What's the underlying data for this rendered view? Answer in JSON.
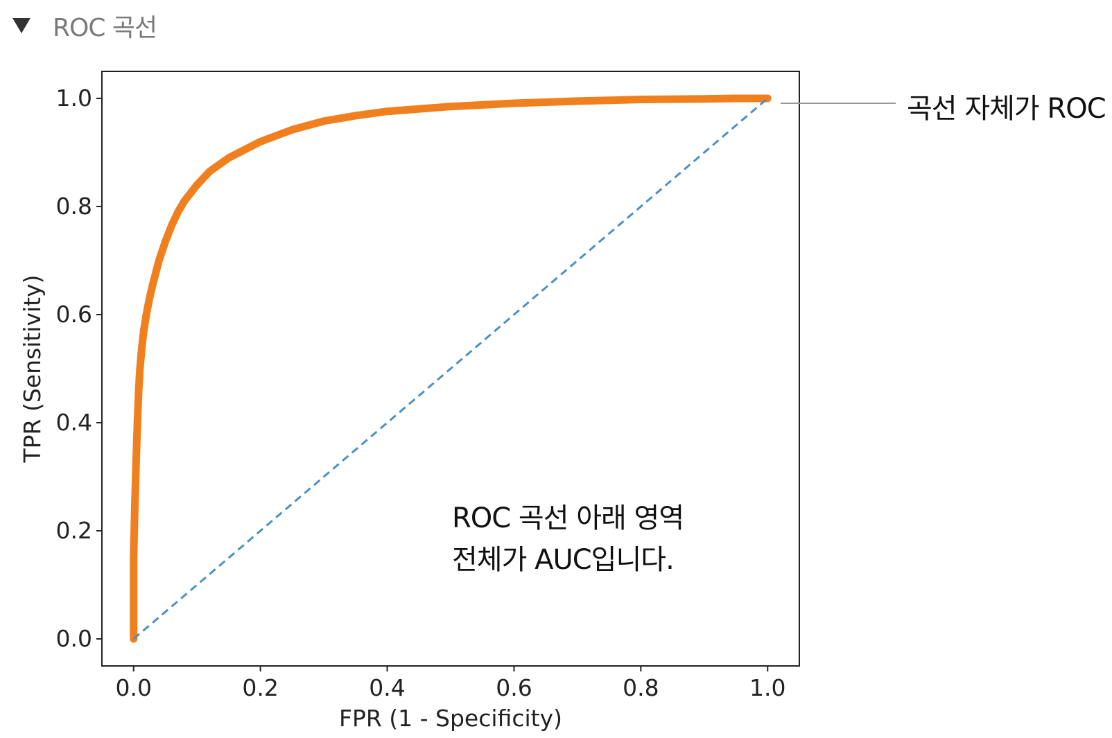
{
  "header": {
    "title": "ROC 곡선",
    "icon": "triangle-down-icon"
  },
  "chart_data": {
    "type": "scatter",
    "xlabel": "FPR (1 - Specificity)",
    "ylabel": "TPR (Sensitivity)",
    "xlim": [
      -0.05,
      1.05
    ],
    "ylim": [
      -0.05,
      1.05
    ],
    "xticks": [
      "0.0",
      "0.2",
      "0.4",
      "0.6",
      "0.8",
      "1.0"
    ],
    "yticks": [
      "0.0",
      "0.2",
      "0.4",
      "0.6",
      "0.8",
      "1.0"
    ],
    "grid": false,
    "series": [
      {
        "style": "scatter-line",
        "color": "#f07f1e",
        "x": [
          0.0,
          0.0,
          0.0,
          0.002,
          0.004,
          0.006,
          0.008,
          0.01,
          0.013,
          0.016,
          0.02,
          0.025,
          0.03,
          0.04,
          0.05,
          0.06,
          0.07,
          0.08,
          0.1,
          0.12,
          0.15,
          0.2,
          0.25,
          0.3,
          0.35,
          0.4,
          0.5,
          0.6,
          0.7,
          0.8,
          0.9,
          0.95,
          1.0
        ],
        "y": [
          0.0,
          0.05,
          0.15,
          0.25,
          0.33,
          0.4,
          0.46,
          0.5,
          0.54,
          0.57,
          0.6,
          0.63,
          0.655,
          0.7,
          0.735,
          0.765,
          0.79,
          0.81,
          0.84,
          0.865,
          0.89,
          0.92,
          0.942,
          0.958,
          0.968,
          0.976,
          0.985,
          0.991,
          0.995,
          0.998,
          0.999,
          1.0,
          1.0
        ]
      },
      {
        "style": "dashed-line",
        "color": "#4a90c8",
        "x": [
          0.0,
          1.0
        ],
        "y": [
          0.0,
          1.0
        ]
      }
    ]
  },
  "annotations": {
    "auc_line1": "ROC 곡선 아래 영역",
    "auc_line2": "전체가 AUC입니다.",
    "roc_label": "곡선 자체가 ROC"
  }
}
